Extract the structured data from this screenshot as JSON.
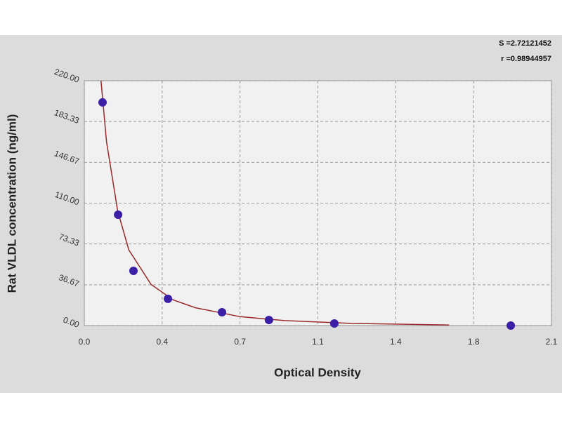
{
  "chart_data": {
    "type": "scatter",
    "annotations": [
      "S =2.72121452",
      "r =0.98944957"
    ],
    "x_label": "Optical Density",
    "y_label": "Rat VLDL concentration (ng/ml)",
    "xlim": [
      0,
      2.1
    ],
    "xticks": [
      {
        "value": 0,
        "label": "0.0"
      },
      {
        "value": 0.35,
        "label": "0.4"
      },
      0.7,
      {
        "value": 1.05,
        "label": "1.1"
      },
      1.4,
      {
        "value": 1.75,
        "label": "1.8"
      },
      2.1
    ],
    "ylim": [
      0,
      220
    ],
    "yticks": [
      {
        "value": 0,
        "label": "0.00"
      },
      36.67,
      73.33,
      {
        "value": 110,
        "label": "110.00"
      },
      146.67,
      183.33,
      {
        "value": 220,
        "label": "220.00"
      }
    ],
    "grid": true,
    "series": [
      {
        "style": "markers",
        "color": "#3b1fa6",
        "x": [
          0.082,
          0.152,
          0.221,
          0.376,
          0.619,
          0.83,
          1.124,
          1.917
        ],
        "values": [
          200.5,
          99.6,
          49.2,
          24.0,
          12.0,
          5.0,
          1.9,
          0
        ]
      },
      {
        "style": "line",
        "color": "#9a2a2a",
        "x": [
          0.075,
          0.1,
          0.15,
          0.2,
          0.3,
          0.4,
          0.5,
          0.7,
          0.9,
          1.2,
          1.64
        ],
        "values": [
          220,
          165,
          103,
          68,
          37,
          23,
          16,
          8,
          4.5,
          2,
          0.5
        ]
      }
    ]
  }
}
